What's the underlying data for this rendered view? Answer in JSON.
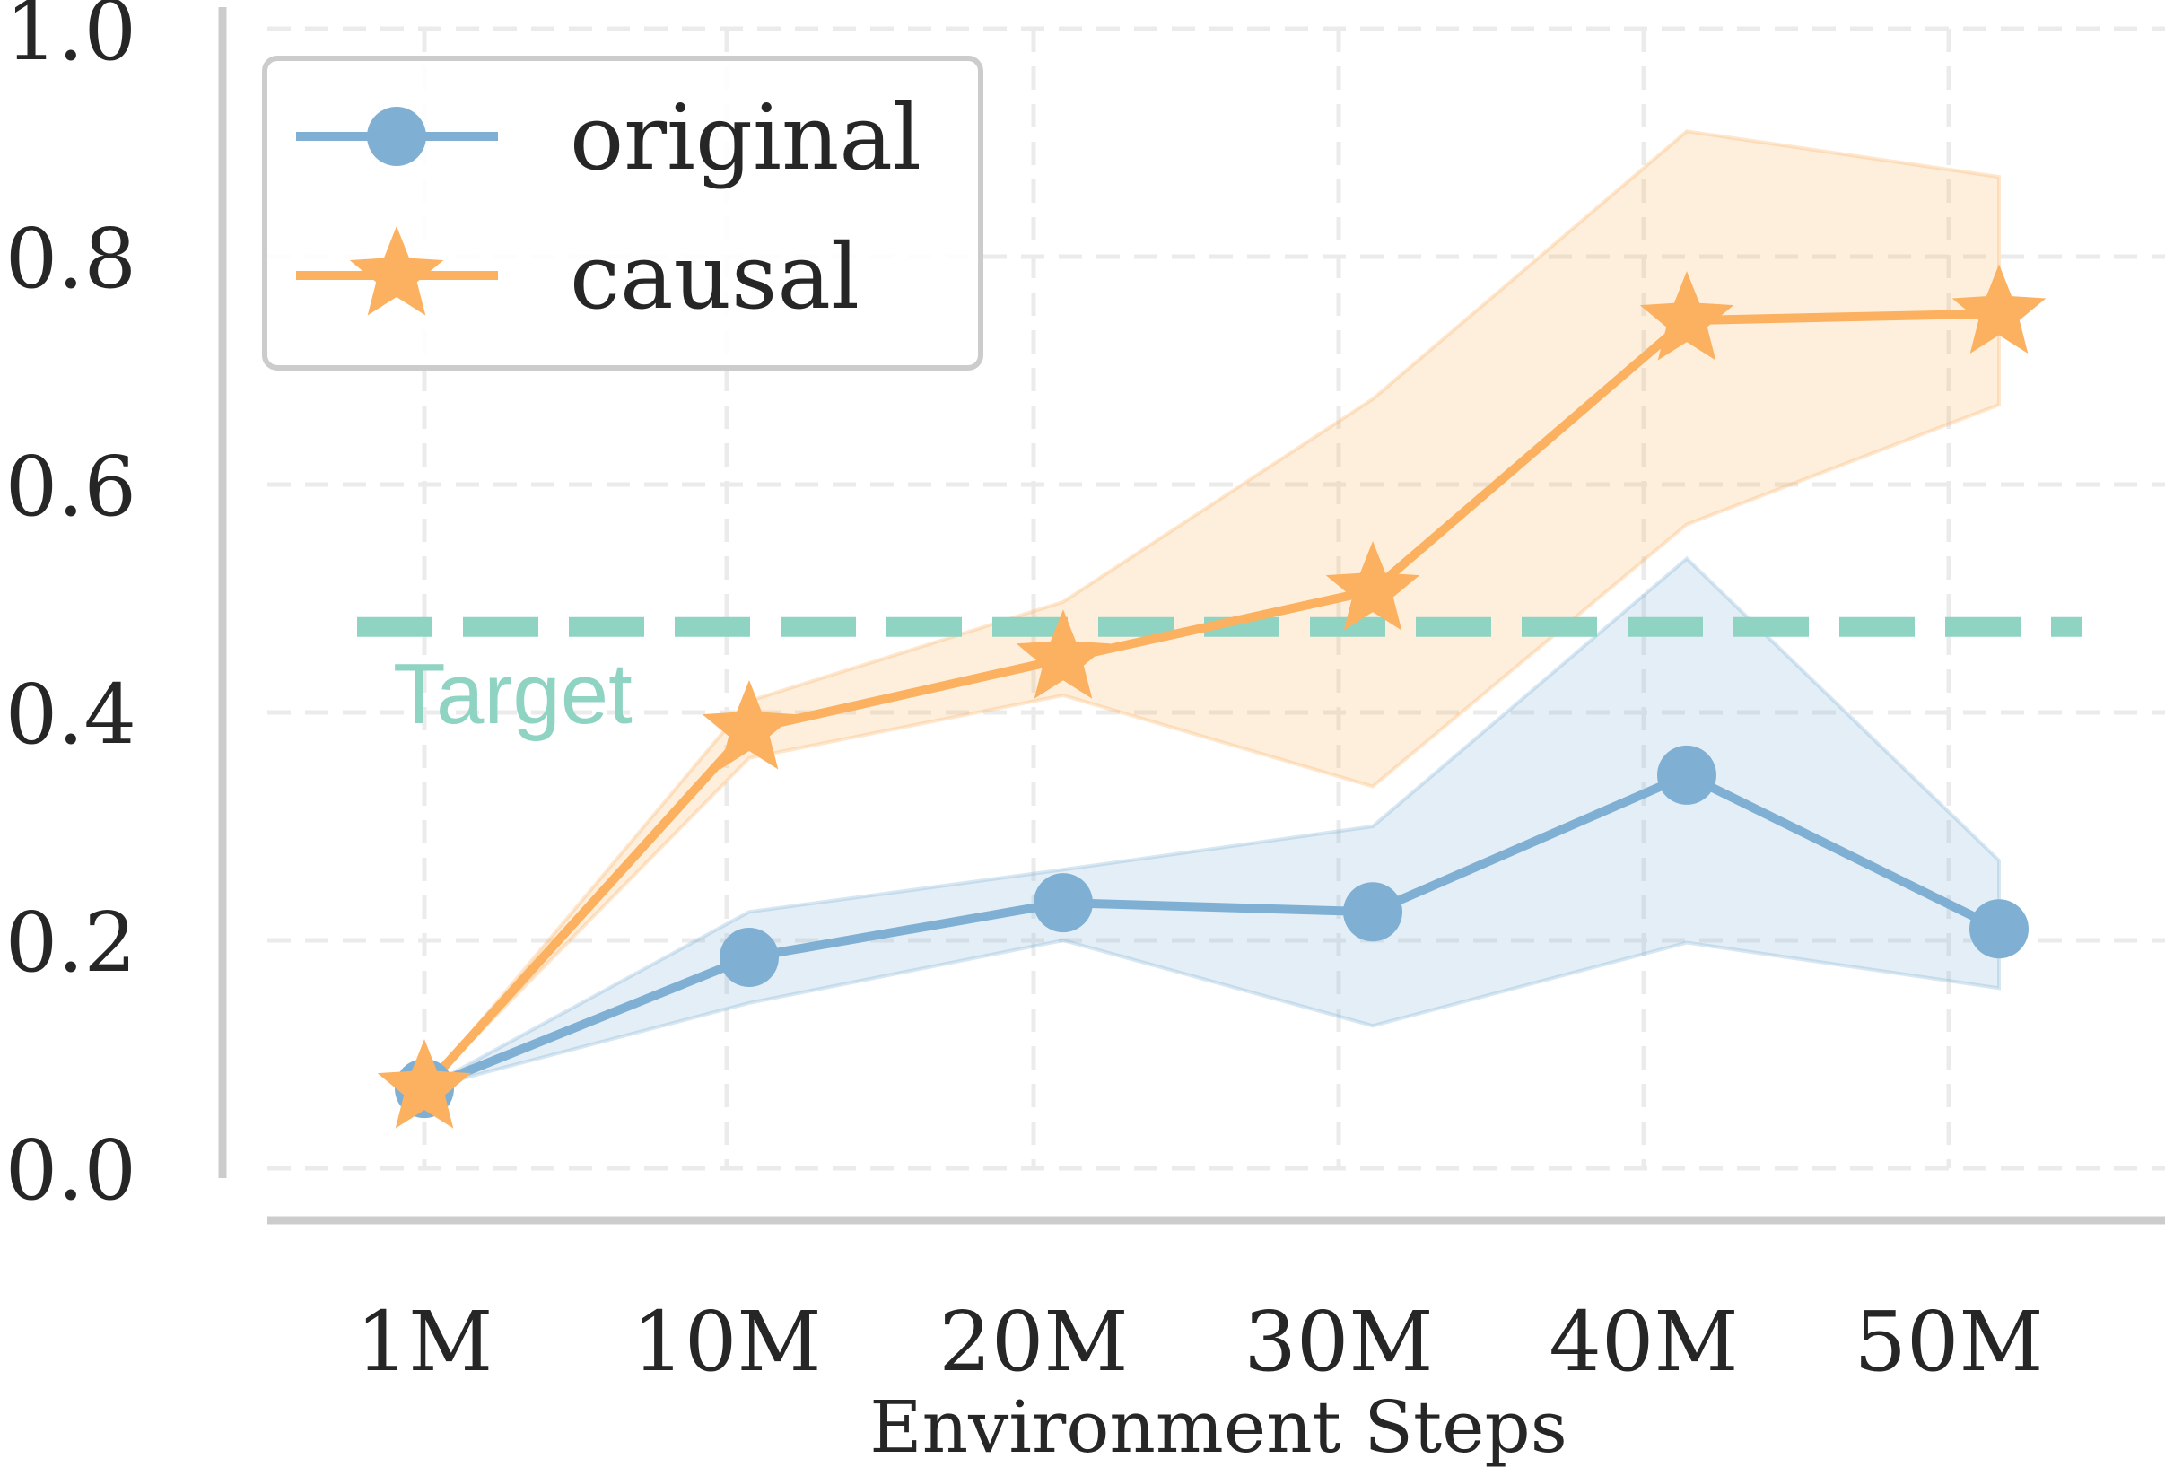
{
  "chart_data": {
    "type": "line",
    "xlabel": "Environment Steps",
    "ylabel": "",
    "categories": [
      "1M",
      "10M",
      "20M",
      "30M",
      "40M",
      "50M"
    ],
    "ylim": [
      0.0,
      1.0
    ],
    "yticks": [
      "0.0",
      "0.2",
      "0.4",
      "0.6",
      "0.8",
      "1.0"
    ],
    "grid": true,
    "legend_position": "top-left",
    "series": [
      {
        "name": "original",
        "marker": "circle",
        "color": "#7fb0d4",
        "values": [
          0.07,
          0.185,
          0.233,
          0.225,
          0.345,
          0.21
        ],
        "lower": [
          0.07,
          0.145,
          0.2,
          0.125,
          0.198,
          0.158
        ],
        "upper": [
          0.07,
          0.225,
          0.262,
          0.3,
          0.535,
          0.27
        ]
      },
      {
        "name": "causal",
        "marker": "star",
        "color": "#fbb15f",
        "values": [
          0.07,
          0.385,
          0.447,
          0.507,
          0.744,
          0.75
        ],
        "lower": [
          0.07,
          0.36,
          0.415,
          0.335,
          0.565,
          0.67
        ],
        "upper": [
          0.07,
          0.41,
          0.497,
          0.675,
          0.91,
          0.87
        ]
      }
    ],
    "reference_line": {
      "label": "Target",
      "value": 0.475,
      "color": "#8fd3c3"
    }
  }
}
